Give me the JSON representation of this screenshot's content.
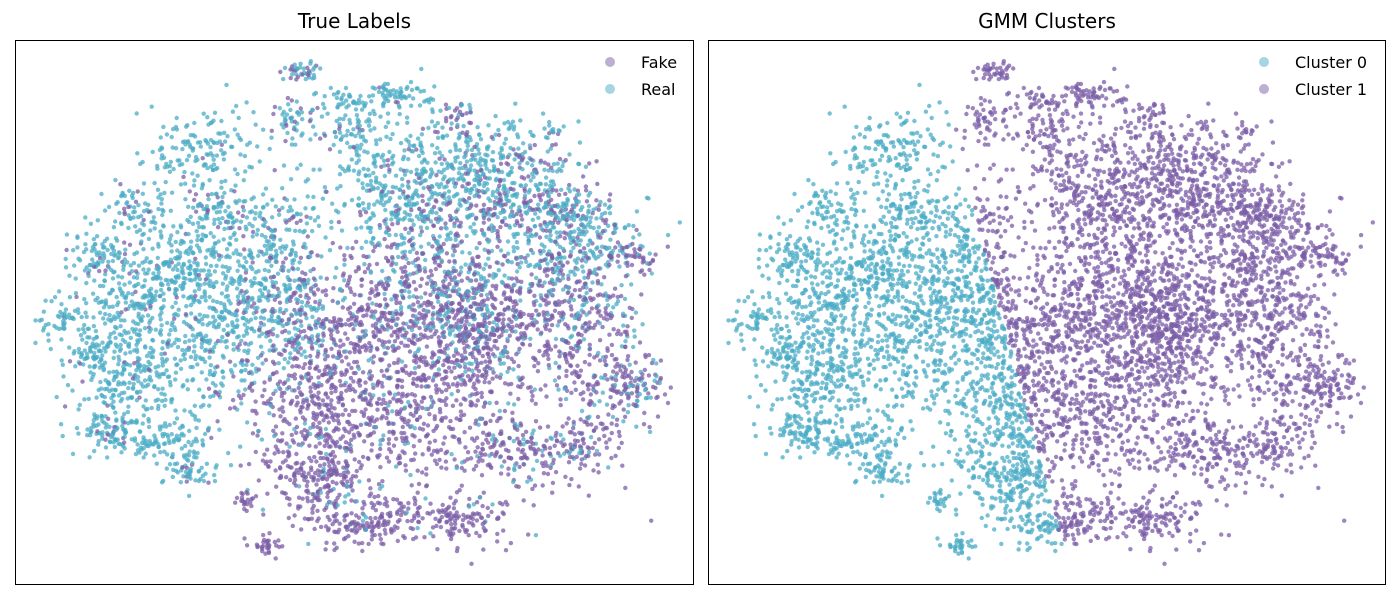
{
  "colors": {
    "fake": "#7b5ea7",
    "real": "#4bacc6"
  },
  "chart_data": [
    {
      "type": "scatter",
      "title": "True Labels",
      "xlabel": "",
      "ylabel": "",
      "axis_ticks": "none",
      "legend_position": "top-right",
      "series": [
        {
          "name": "Fake",
          "color": "#7b5ea7"
        },
        {
          "name": "Real",
          "color": "#4bacc6"
        }
      ]
    },
    {
      "type": "scatter",
      "title": "GMM Clusters",
      "xlabel": "",
      "ylabel": "",
      "axis_ticks": "none",
      "legend_position": "top-right",
      "series": [
        {
          "name": "Cluster 0",
          "color": "#4bacc6"
        },
        {
          "name": "Cluster 1",
          "color": "#7b5ea7"
        }
      ]
    }
  ]
}
